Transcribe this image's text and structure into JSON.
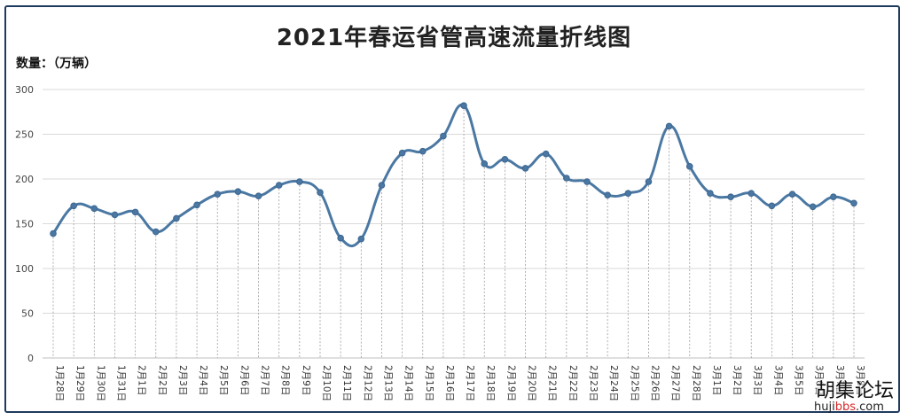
{
  "chart_data": {
    "type": "line",
    "title": "2021年春运省管高速流量折线图",
    "ylabel": "数量：（万辆）",
    "xlabel": "",
    "ylim": [
      0,
      300
    ],
    "yticks": [
      0,
      50,
      100,
      150,
      200,
      250,
      300
    ],
    "grid": true,
    "smooth": true,
    "line_color": "#4a78a3",
    "point_color": "#4a78a3",
    "categories": [
      "1月28日",
      "1月29日",
      "1月30日",
      "1月31日",
      "2月1日",
      "2月2日",
      "2月3日",
      "2月4日",
      "2月5日",
      "2月6日",
      "2月7日",
      "2月8日",
      "2月9日",
      "2月10日",
      "2月11日",
      "2月12日",
      "2月13日",
      "2月14日",
      "2月15日",
      "2月16日",
      "2月17日",
      "2月18日",
      "2月19日",
      "2月20日",
      "2月21日",
      "2月22日",
      "2月23日",
      "2月24日",
      "2月25日",
      "2月26日",
      "2月27日",
      "2月28日",
      "3月1日",
      "3月2日",
      "3月3日",
      "3月4日",
      "3月5日",
      "3月6日",
      "3月7日",
      "3月8日"
    ],
    "values": [
      139,
      170,
      167,
      160,
      163,
      141,
      156,
      171,
      183,
      186,
      181,
      193,
      197,
      185,
      134,
      133,
      193,
      229,
      231,
      248,
      282,
      217,
      222,
      212,
      228,
      201,
      197,
      182,
      184,
      197,
      259,
      214,
      184,
      180,
      184,
      170,
      183,
      169,
      180,
      173
    ]
  },
  "watermark": {
    "name": "胡集论坛",
    "url_prefix": "huji",
    "url_highlight": "bbs",
    "url_suffix": ".com"
  }
}
